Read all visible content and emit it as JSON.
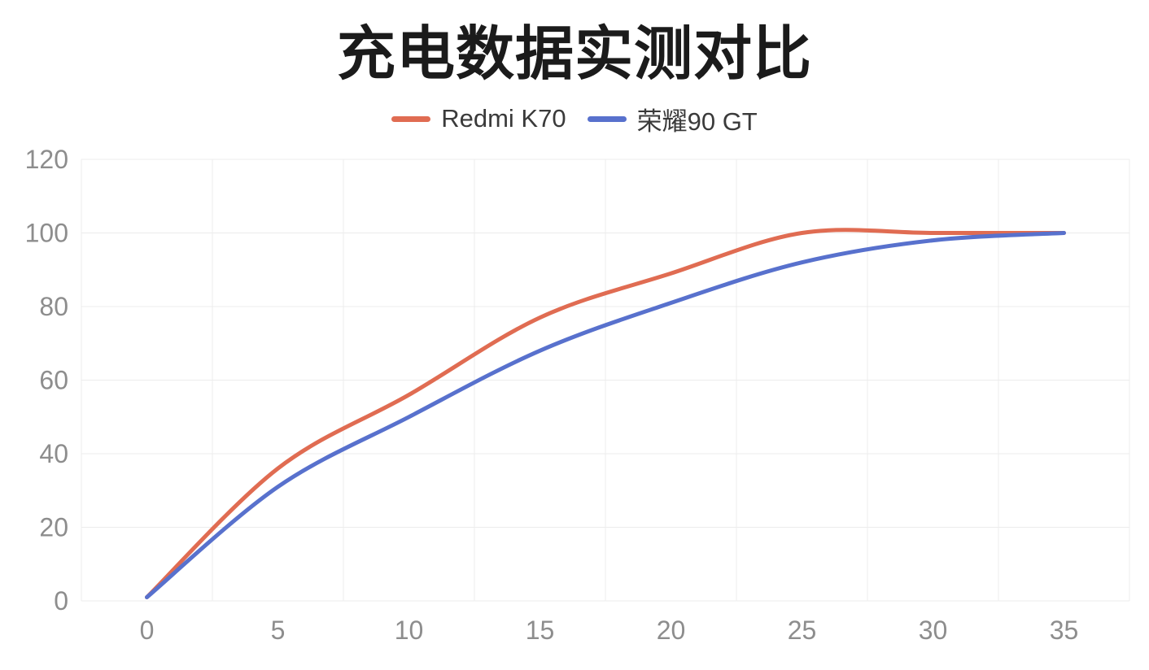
{
  "title": "充电数据实测对比",
  "chart_data": {
    "type": "line",
    "title": "充电数据实测对比",
    "x": [
      "0",
      "5",
      "10",
      "15",
      "20",
      "25",
      "30",
      "35"
    ],
    "xlabel": "",
    "ylabel": "",
    "ylim": [
      0,
      120
    ],
    "y_ticks": [
      0,
      20,
      40,
      60,
      80,
      100,
      120
    ],
    "grid": true,
    "legend_position": "top",
    "line_smoothing": "catmull-rom",
    "series": [
      {
        "name": "Redmi K70",
        "color": "#e06c52",
        "values": [
          1,
          36,
          56,
          77,
          89,
          100,
          100,
          100
        ]
      },
      {
        "name": "荣耀90 GT",
        "color": "#5871cd",
        "values": [
          1,
          31,
          50,
          68,
          81,
          92,
          98,
          100
        ]
      }
    ],
    "axis_label_color": "#8d8d8d",
    "grid_color": "#ececec",
    "title_color": "#1b1b1b",
    "legend_text_color": "#3a3a3a"
  }
}
